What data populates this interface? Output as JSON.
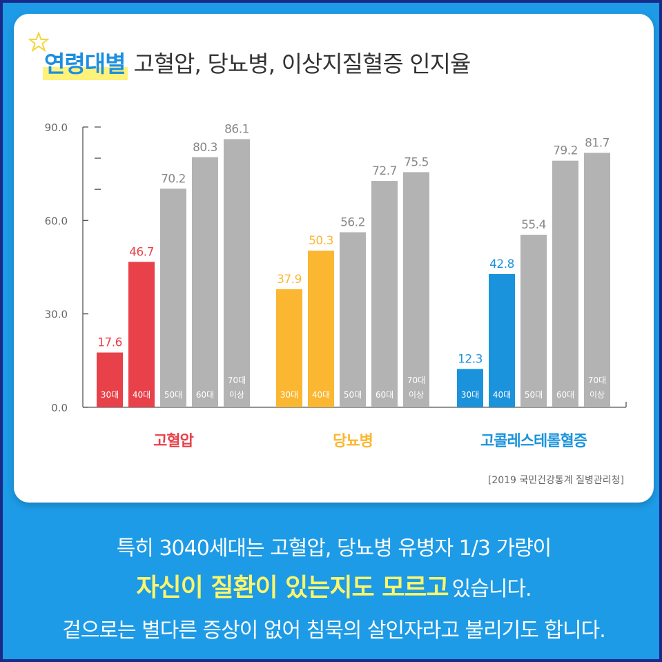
{
  "title": {
    "highlight": "연령대별",
    "rest": "고혈압, 당뇨병, 이상지질혈증 인지율"
  },
  "source": "[2019 국민건강통계 질병관리청]",
  "message": {
    "line1": "특히 3040세대는 고혈압, 당뇨병 유병자 1/3 가량이",
    "line2_highlight": "자신이 질환이 있는지도 모르고",
    "line2_rest": "있습니다.",
    "line3": "겉으로는 별다른 증상이 없어 침묵의 살인자라고 불리기도 합니다."
  },
  "colors": {
    "background": "#1d9be6",
    "hypertension": "#e8414a",
    "diabetes": "#fbb731",
    "dyslipidemia": "#1b93dc",
    "gray": "#b3b3b3",
    "highlight_text": "#fff56a"
  },
  "chart_data": {
    "type": "bar",
    "ylim": [
      0,
      90
    ],
    "yticks": [
      "0.0",
      "30.0",
      "60.0",
      "90.0"
    ],
    "grid": false,
    "age_groups": [
      "30대",
      "40대",
      "50대",
      "60대",
      "70대 이상"
    ],
    "series": [
      {
        "name": "고혈압",
        "values": [
          17.6,
          46.7,
          70.2,
          80.3,
          86.1
        ],
        "labels": [
          "17.6",
          "46.7",
          "70.2",
          "80.3",
          "86.1"
        ],
        "color": "#e8414a",
        "highlighted": [
          0,
          1
        ]
      },
      {
        "name": "당뇨병",
        "values": [
          37.9,
          50.3,
          56.2,
          72.7,
          75.5
        ],
        "labels": [
          "37.9",
          "50.3",
          "56.2",
          "72.7",
          "75.5"
        ],
        "color": "#fbb731",
        "highlighted": [
          0,
          1
        ]
      },
      {
        "name": "고콜레스테롤혈증",
        "values": [
          12.3,
          42.8,
          55.4,
          79.2,
          81.7
        ],
        "labels": [
          "12.3",
          "42.8",
          "55.4",
          "79.2",
          "81.7"
        ],
        "color": "#1b93dc",
        "highlighted": [
          0,
          1
        ]
      }
    ]
  }
}
